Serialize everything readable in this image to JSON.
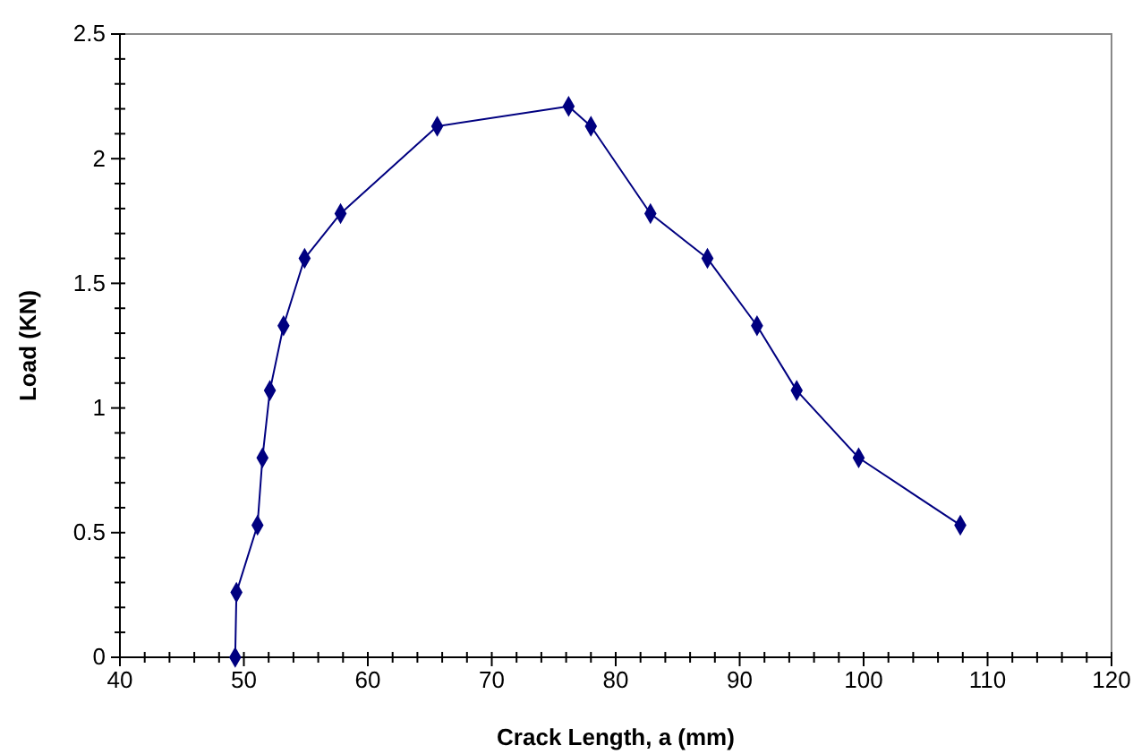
{
  "chart_data": {
    "type": "line",
    "xlabel": "Crack Length, a (mm)",
    "ylabel": "Load (KN)",
    "xlim": [
      40,
      120
    ],
    "xticks": [
      40,
      50,
      60,
      70,
      80,
      90,
      100,
      110,
      120
    ],
    "ylim": [
      0,
      2.5
    ],
    "yticks": [
      0,
      0.5,
      1,
      1.5,
      2,
      2.5
    ],
    "grid": false,
    "marker": "diamond",
    "line_style": "solid",
    "series": [
      {
        "color": "#000080",
        "x": [
          49.3,
          49.4,
          51.1,
          51.5,
          52.1,
          53.2,
          54.9,
          57.8,
          65.6,
          76.2,
          78.0,
          82.8,
          87.4,
          91.4,
          94.6,
          99.6,
          107.8
        ],
        "values": [
          0,
          0.26,
          0.53,
          0.8,
          1.07,
          1.33,
          1.6,
          1.78,
          2.13,
          2.21,
          2.13,
          1.78,
          1.6,
          1.33,
          1.07,
          0.8,
          0.53
        ]
      }
    ]
  }
}
